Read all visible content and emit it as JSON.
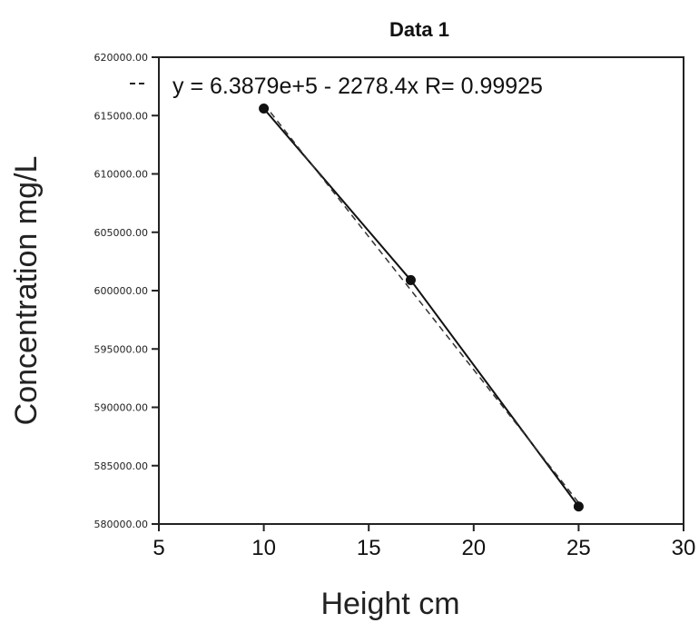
{
  "chart_data": {
    "type": "scatter",
    "title": "Data 1",
    "xlabel": "Height cm",
    "ylabel": "Concentration mg/L",
    "xlim": [
      5,
      30
    ],
    "ylim": [
      580000,
      620000
    ],
    "x_ticks": [
      "5",
      "10",
      "15",
      "20",
      "25",
      "30"
    ],
    "y_ticks": [
      "580000.00",
      "585000.00",
      "590000.00",
      "595000.00",
      "600000.00",
      "605000.00",
      "610000.00",
      "615000.00",
      "620000.00"
    ],
    "series": [
      {
        "points": [
          {
            "x": 10,
            "y": 615600
          },
          {
            "x": 17,
            "y": 600900
          },
          {
            "x": 25,
            "y": 581500
          }
        ]
      }
    ],
    "fit": {
      "equation": "y = 6.3879e+5 - 2278.4x   R= 0.99925",
      "intercept": 638790,
      "slope": -2278.4
    },
    "grid": false,
    "legend": "none"
  }
}
